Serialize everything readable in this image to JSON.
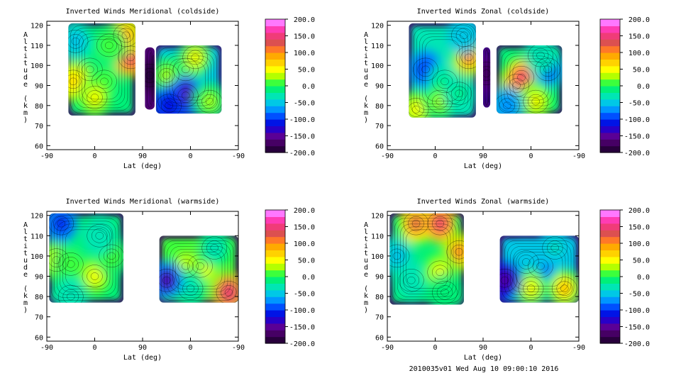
{
  "colors": {
    "colorbar": [
      "#28003c",
      "#460064",
      "#5a0096",
      "#2800c8",
      "#0014e6",
      "#0050ff",
      "#0096ff",
      "#00c8e6",
      "#00e6b4",
      "#00f078",
      "#3cff3c",
      "#b4ff00",
      "#ffff00",
      "#ffd200",
      "#ffaa00",
      "#ff7828",
      "#dc5050",
      "#f03c78",
      "#ff3cb4",
      "#ff78ff"
    ],
    "lines": "#000000"
  },
  "footer": "2010035v01 Wed Aug 10 09:00:10 2016",
  "chart_data": [
    {
      "type": "heatmap",
      "title": "Inverted Winds Meridional (coldside)",
      "xlabel": "Lat (deg)",
      "ylabel": "Altitude (km)",
      "xticks": [
        "-90",
        "0",
        "90",
        "0",
        "-90"
      ],
      "yticks": [
        "60",
        "70",
        "80",
        "90",
        "100",
        "110",
        "120"
      ],
      "ylim": [
        58,
        122
      ],
      "colorbar_ticks": [
        "200.0",
        "150.0",
        "100.0",
        "50.0",
        "0.0",
        "-50.0",
        "-100.0",
        "-150.0",
        "-200.0"
      ],
      "colorbar_range": [
        -200,
        200
      ],
      "regions": [
        {
          "x": [
            -85,
            45
          ],
          "y": [
            74,
            122
          ],
          "base": -10,
          "blobs": [
            {
              "x": -40,
              "y": 98,
              "a": 10
            },
            {
              "x": 30,
              "y": 105,
              "a": 150
            },
            {
              "x": 30,
              "y": 118,
              "a": 80
            },
            {
              "x": -70,
              "y": 90,
              "a": 60
            },
            {
              "x": 0,
              "y": 85,
              "a": 40
            }
          ]
        },
        {
          "x": 95,
          "y0": 78,
          "y1": 110,
          "dummy": 0
        },
        {
          "x": [
            95,
            135
          ],
          "y": [
            76,
            110
          ],
          "base": -40,
          "blobs": [
            {
              "x": 105,
              "y": 88,
              "a": -150
            },
            {
              "x": 112,
              "y": 102,
              "a": 60
            }
          ]
        },
        {
          "x": [
            -45,
            135
          ],
          "y": [
            76,
            110
          ],
          "base": 0,
          "blobs": []
        }
      ]
    },
    {
      "type": "heatmap",
      "title": "Inverted Winds Zonal (coldside)",
      "xlabel": "Lat (deg)",
      "ylabel": "Altitude (km)",
      "xticks": [
        "-90",
        "0",
        "90",
        "0",
        "-90"
      ],
      "yticks": [
        "60",
        "70",
        "80",
        "90",
        "100",
        "110",
        "120"
      ],
      "ylim": [
        58,
        122
      ],
      "colorbar_ticks": [
        "200.0",
        "150.0",
        "100.0",
        "50.0",
        "0.0",
        "-50.0",
        "-100.0",
        "-150.0",
        "-200.0"
      ],
      "colorbar_range": [
        -200,
        200
      ],
      "regions": []
    },
    {
      "type": "heatmap",
      "title": "Inverted Winds Meridional (warmside)",
      "xlabel": "Lat (deg)",
      "ylabel": "Altitude (km)",
      "xticks": [
        "-90",
        "0",
        "90",
        "0",
        "-90"
      ],
      "yticks": [
        "60",
        "70",
        "80",
        "90",
        "100",
        "110",
        "120"
      ],
      "ylim": [
        58,
        122
      ],
      "colorbar_ticks": [
        "200.0",
        "150.0",
        "100.0",
        "50.0",
        "0.0",
        "-50.0",
        "-100.0",
        "-150.0",
        "-200.0"
      ],
      "colorbar_range": [
        -200,
        200
      ],
      "regions": []
    },
    {
      "type": "heatmap",
      "title": "Inverted Winds Zonal (warmside)",
      "xlabel": "Lat (deg)",
      "ylabel": "Altitude (km)",
      "xticks": [
        "-90",
        "0",
        "90",
        "0",
        "-90"
      ],
      "yticks": [
        "60",
        "70",
        "80",
        "90",
        "100",
        "110",
        "120"
      ],
      "ylim": [
        58,
        122
      ],
      "colorbar_ticks": [
        "200.0",
        "150.0",
        "100.0",
        "50.0",
        "0.0",
        "-50.0",
        "-100.0",
        "-150.0",
        "-200.0"
      ],
      "colorbar_range": [
        -200,
        200
      ],
      "regions": []
    }
  ]
}
